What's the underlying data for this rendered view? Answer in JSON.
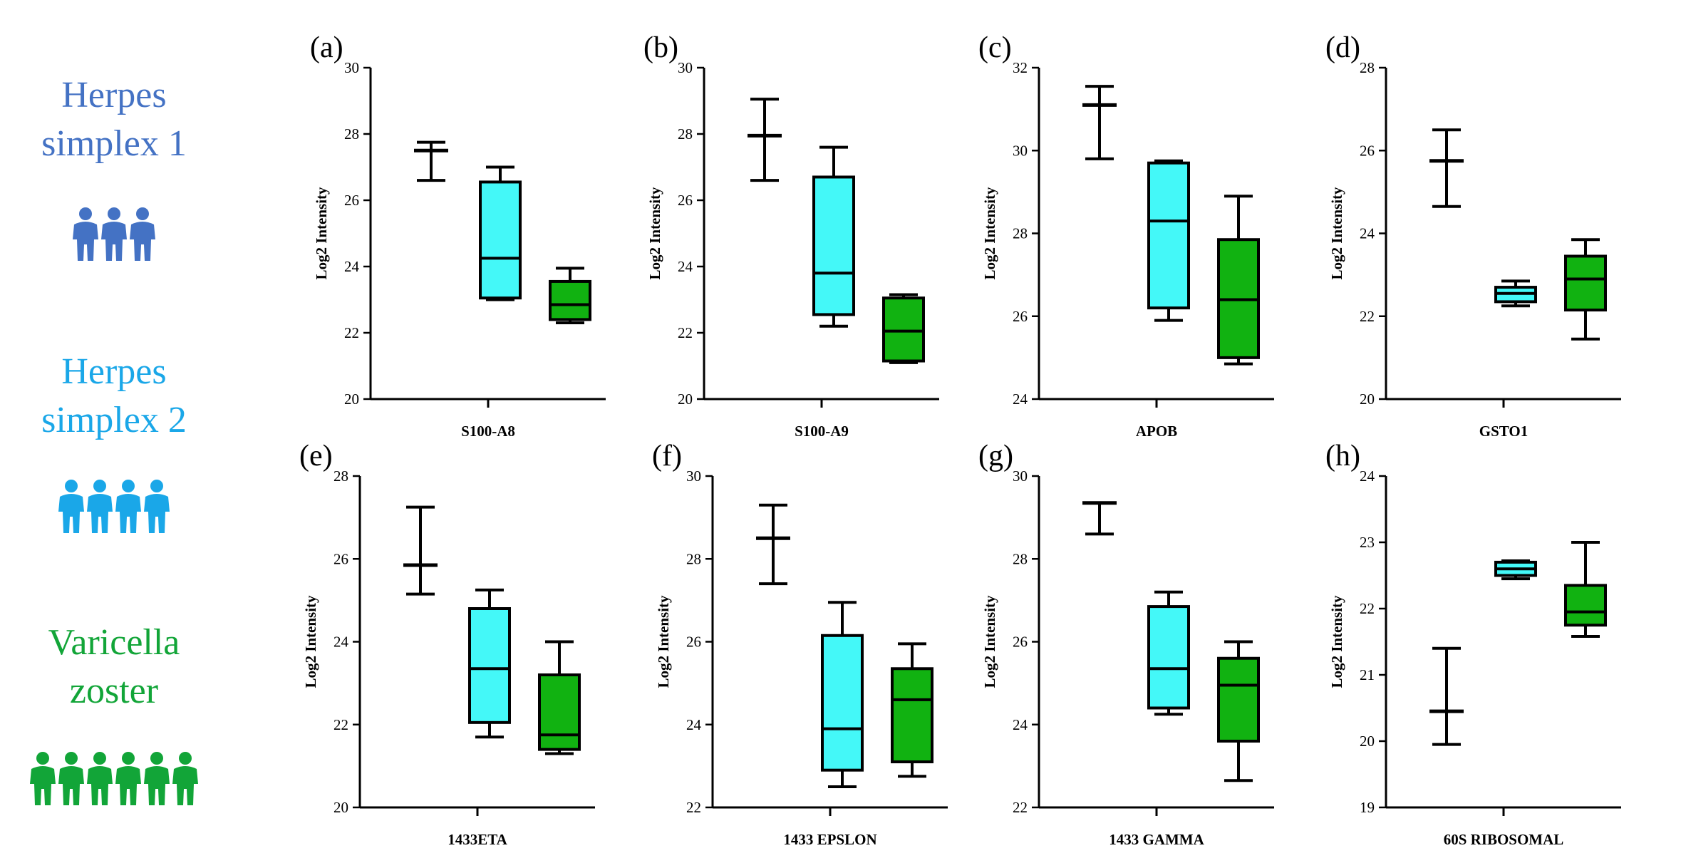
{
  "legend": {
    "groups": [
      {
        "line1": "Herpes",
        "line2": "simplex 1",
        "color": "#4472c4",
        "people": 3,
        "icon": "group-people-icon"
      },
      {
        "line1": "Herpes",
        "line2": "simplex 2",
        "color": "#1aa7e8",
        "people": 4,
        "icon": "group-people-icon"
      },
      {
        "line1": "Varicella",
        "line2": "zoster",
        "color": "#12a538",
        "people": 6,
        "icon": "group-people-icon"
      }
    ]
  },
  "style": {
    "hsv1_color": "#000000",
    "hsv2_fill": "#44f8f8",
    "vzv_fill": "#11b211",
    "box_stroke": "#000000"
  },
  "chart_data": [
    {
      "panel": "(a)",
      "type": "box",
      "xlabel": "S100-A8",
      "ylabel": "Log2 Intensity",
      "ylim": [
        20,
        30
      ],
      "yticks": [
        20,
        22,
        24,
        26,
        28,
        30
      ],
      "groups": [
        "Herpes simplex 1",
        "Herpes simplex 2",
        "Varicella zoster"
      ],
      "boxes": [
        {
          "group": "Herpes simplex 1",
          "min": 26.6,
          "q1": 27.5,
          "median": 27.5,
          "q3": 27.5,
          "max": 27.75
        },
        {
          "group": "Herpes simplex 2",
          "min": 23.0,
          "q1": 23.05,
          "median": 24.25,
          "q3": 26.55,
          "max": 27.0
        },
        {
          "group": "Varicella zoster",
          "min": 22.3,
          "q1": 22.4,
          "median": 22.85,
          "q3": 23.55,
          "max": 23.95
        }
      ]
    },
    {
      "panel": "(b)",
      "type": "box",
      "xlabel": "S100-A9",
      "ylabel": "Log2 Intensity",
      "ylim": [
        20,
        30
      ],
      "yticks": [
        20,
        22,
        24,
        26,
        28,
        30
      ],
      "groups": [
        "Herpes simplex 1",
        "Herpes simplex 2",
        "Varicella zoster"
      ],
      "boxes": [
        {
          "group": "Herpes simplex 1",
          "min": 26.6,
          "q1": 27.95,
          "median": 27.95,
          "q3": 27.95,
          "max": 29.05
        },
        {
          "group": "Herpes simplex 2",
          "min": 22.2,
          "q1": 22.55,
          "median": 23.8,
          "q3": 26.7,
          "max": 27.6
        },
        {
          "group": "Varicella zoster",
          "min": 21.1,
          "q1": 21.15,
          "median": 22.05,
          "q3": 23.05,
          "max": 23.15
        }
      ]
    },
    {
      "panel": "(c)",
      "type": "box",
      "xlabel": "APOB",
      "ylabel": "Log2 Intensity",
      "ylim": [
        24,
        32
      ],
      "yticks": [
        24,
        26,
        28,
        30,
        32
      ],
      "groups": [
        "Herpes simplex 1",
        "Herpes simplex 2",
        "Varicella zoster"
      ],
      "boxes": [
        {
          "group": "Herpes simplex 1",
          "min": 29.8,
          "q1": 31.1,
          "median": 31.1,
          "q3": 31.1,
          "max": 31.55
        },
        {
          "group": "Herpes simplex 2",
          "min": 25.9,
          "q1": 26.2,
          "median": 28.3,
          "q3": 29.7,
          "max": 29.75
        },
        {
          "group": "Varicella zoster",
          "min": 24.85,
          "q1": 25.0,
          "median": 26.4,
          "q3": 27.85,
          "max": 28.9
        }
      ]
    },
    {
      "panel": "(d)",
      "type": "box",
      "xlabel": "GSTO1",
      "ylabel": "Log2 Intensity",
      "ylim": [
        20,
        28
      ],
      "yticks": [
        20,
        22,
        24,
        26,
        28
      ],
      "groups": [
        "Herpes simplex 1",
        "Herpes simplex 2",
        "Varicella zoster"
      ],
      "boxes": [
        {
          "group": "Herpes simplex 1",
          "min": 24.65,
          "q1": 25.75,
          "median": 25.75,
          "q3": 25.75,
          "max": 26.5
        },
        {
          "group": "Herpes simplex 2",
          "min": 22.25,
          "q1": 22.35,
          "median": 22.55,
          "q3": 22.7,
          "max": 22.85
        },
        {
          "group": "Varicella zoster",
          "min": 21.45,
          "q1": 22.15,
          "median": 22.9,
          "q3": 23.45,
          "max": 23.85
        }
      ]
    },
    {
      "panel": "(e)",
      "type": "box",
      "xlabel": "1433ETA",
      "ylabel": "Log2 Intensity",
      "ylim": [
        20,
        28
      ],
      "yticks": [
        20,
        22,
        24,
        26,
        28
      ],
      "groups": [
        "Herpes simplex 1",
        "Herpes simplex 2",
        "Varicella zoster"
      ],
      "boxes": [
        {
          "group": "Herpes simplex 1",
          "min": 25.15,
          "q1": 25.85,
          "median": 25.85,
          "q3": 25.85,
          "max": 27.25
        },
        {
          "group": "Herpes simplex 2",
          "min": 21.7,
          "q1": 22.05,
          "median": 23.35,
          "q3": 24.8,
          "max": 25.25
        },
        {
          "group": "Varicella zoster",
          "min": 21.3,
          "q1": 21.4,
          "median": 21.75,
          "q3": 23.2,
          "max": 24.0
        }
      ]
    },
    {
      "panel": "(f)",
      "type": "box",
      "xlabel": "1433 EPSLON",
      "ylabel": "Log2 Intensity",
      "ylim": [
        22,
        30
      ],
      "yticks": [
        22,
        24,
        26,
        28,
        30
      ],
      "groups": [
        "Herpes simplex 1",
        "Herpes simplex 2",
        "Varicella zoster"
      ],
      "boxes": [
        {
          "group": "Herpes simplex 1",
          "min": 27.4,
          "q1": 28.5,
          "median": 28.5,
          "q3": 28.5,
          "max": 29.3
        },
        {
          "group": "Herpes simplex 2",
          "min": 22.5,
          "q1": 22.9,
          "median": 23.9,
          "q3": 26.15,
          "max": 26.95
        },
        {
          "group": "Varicella zoster",
          "min": 22.75,
          "q1": 23.1,
          "median": 24.6,
          "q3": 25.35,
          "max": 25.95
        }
      ]
    },
    {
      "panel": "(g)",
      "type": "box",
      "xlabel": "1433 GAMMA",
      "ylabel": "Log2 Intensity",
      "ylim": [
        22,
        30
      ],
      "yticks": [
        22,
        24,
        26,
        28,
        30
      ],
      "groups": [
        "Herpes simplex 1",
        "Herpes simplex 2",
        "Varicella zoster"
      ],
      "boxes": [
        {
          "group": "Herpes simplex 1",
          "min": 28.6,
          "q1": 29.35,
          "median": 29.35,
          "q3": 29.35,
          "max": 29.35
        },
        {
          "group": "Herpes simplex 2",
          "min": 24.25,
          "q1": 24.4,
          "median": 25.35,
          "q3": 26.85,
          "max": 27.2
        },
        {
          "group": "Varicella zoster",
          "min": 22.65,
          "q1": 23.6,
          "median": 24.95,
          "q3": 25.6,
          "max": 26.0
        }
      ]
    },
    {
      "panel": "(h)",
      "type": "box",
      "xlabel": "60S RIBOSOMAL",
      "ylabel": "Log2 Intensity",
      "ylim": [
        19,
        24
      ],
      "yticks": [
        19,
        20,
        21,
        22,
        23,
        24
      ],
      "groups": [
        "Herpes simplex 1",
        "Herpes simplex 2",
        "Varicella zoster"
      ],
      "boxes": [
        {
          "group": "Herpes simplex 1",
          "min": 19.95,
          "q1": 20.45,
          "median": 20.45,
          "q3": 20.45,
          "max": 21.4
        },
        {
          "group": "Herpes simplex 2",
          "min": 22.45,
          "q1": 22.5,
          "median": 22.6,
          "q3": 22.7,
          "max": 22.72
        },
        {
          "group": "Varicella zoster",
          "min": 21.58,
          "q1": 21.75,
          "median": 21.95,
          "q3": 22.35,
          "max": 23.0
        }
      ]
    }
  ]
}
